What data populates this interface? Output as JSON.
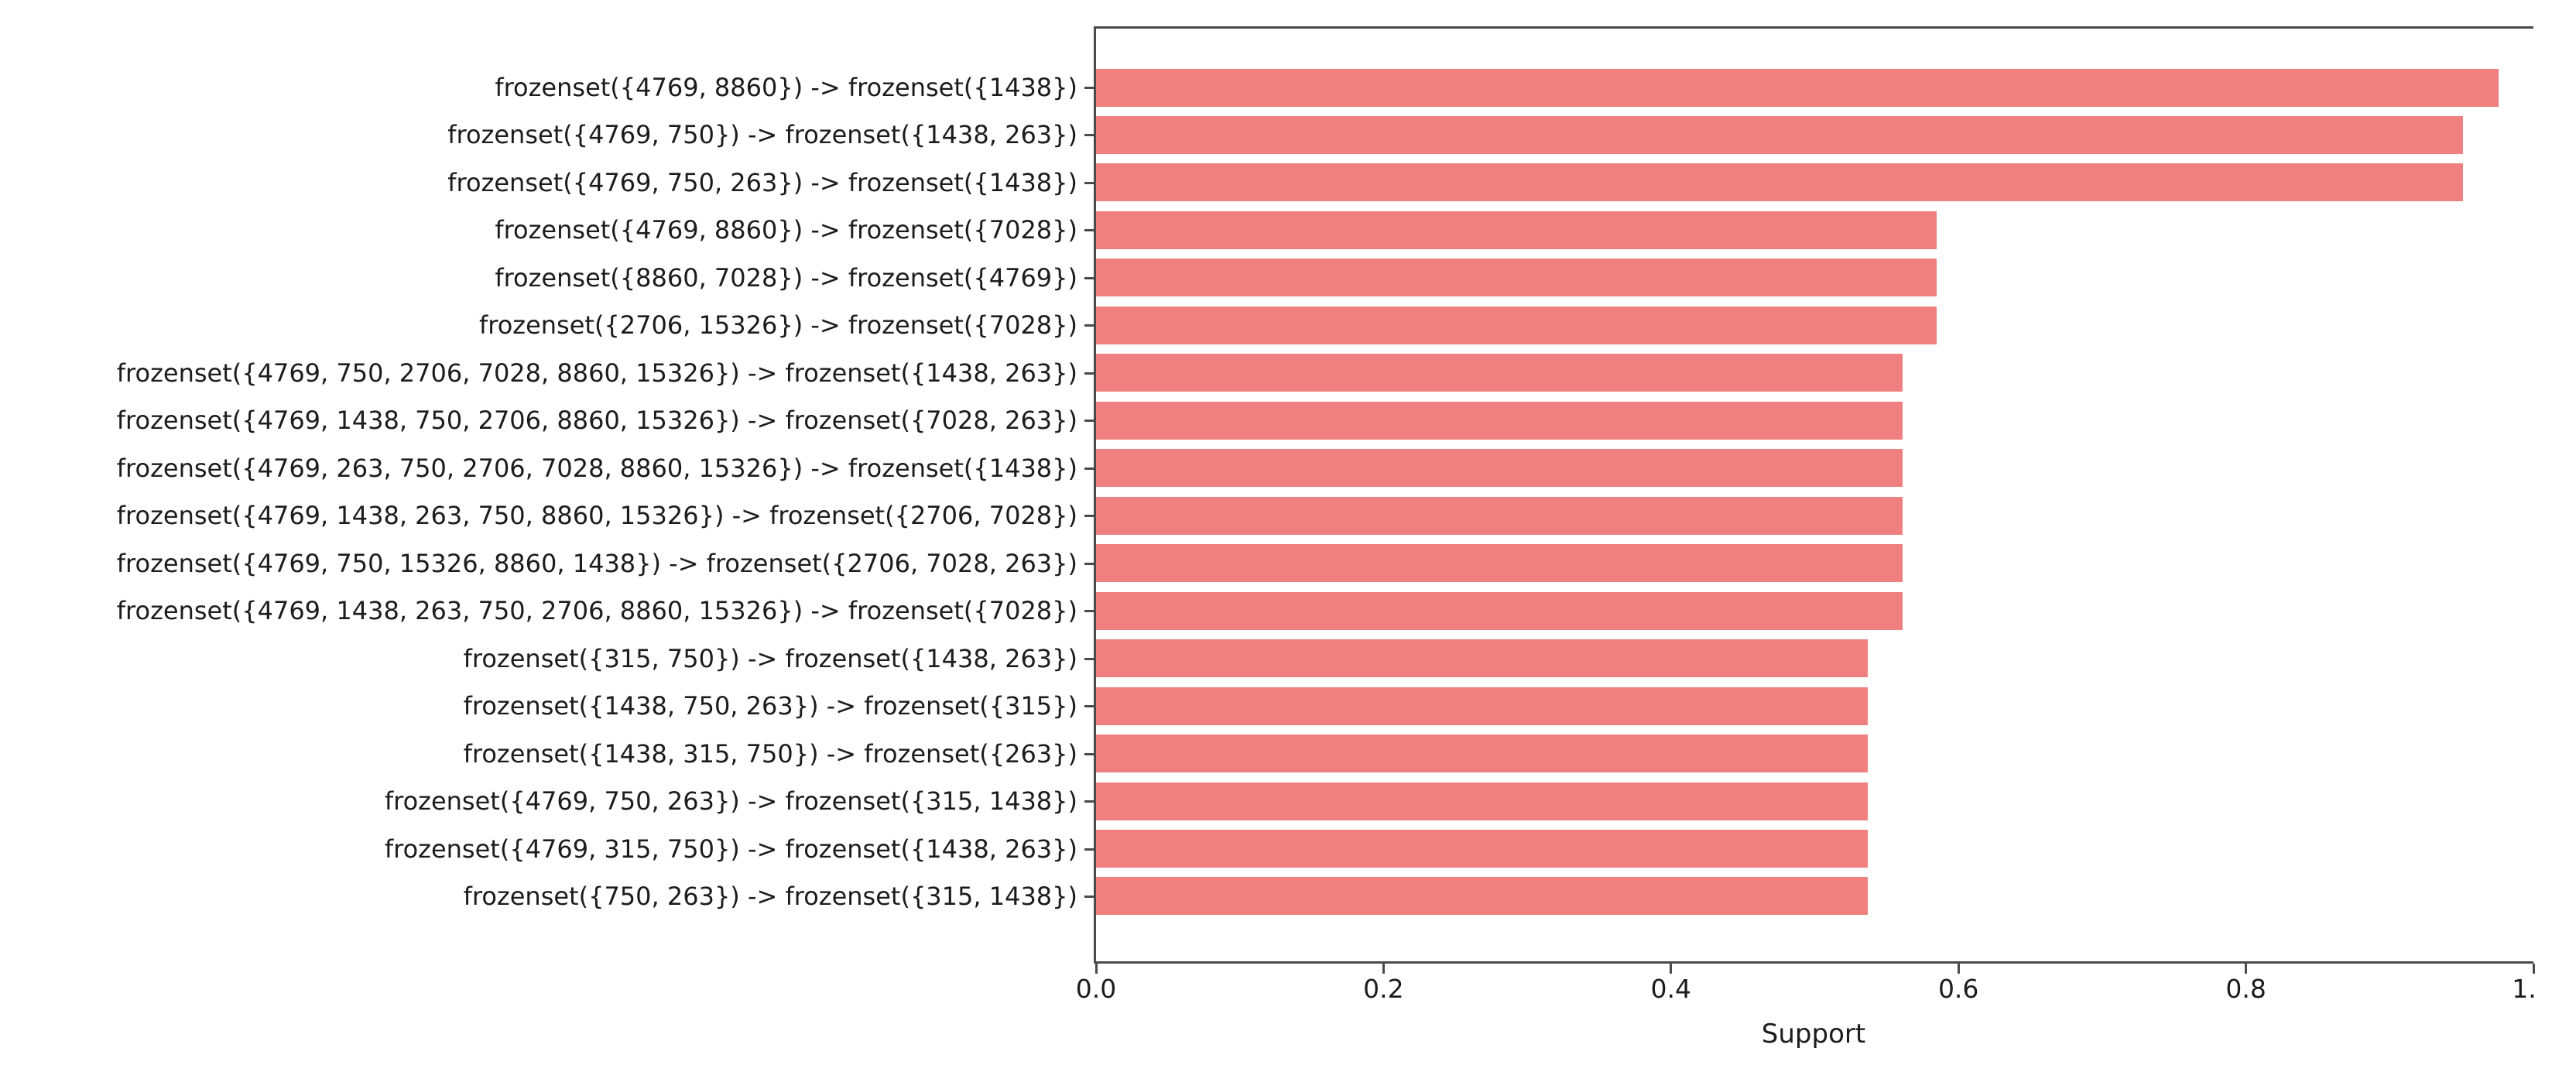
{
  "chart_data": {
    "type": "bar",
    "orientation": "horizontal",
    "title": "",
    "xlabel": "Support",
    "ylabel": "",
    "xlim": [
      0.0,
      1.0
    ],
    "x_ticks": [
      0.0,
      0.2,
      0.4,
      0.6,
      0.8,
      1.0
    ],
    "x_tick_labels": [
      "0.0",
      "0.2",
      "0.4",
      "0.6",
      "0.8",
      "1."
    ],
    "grid": false,
    "legend": null,
    "bar_color": "#f08080",
    "categories": [
      "frozenset({4769, 8860}) -> frozenset({1438})",
      "frozenset({4769, 750}) -> frozenset({1438, 263})",
      "frozenset({4769, 750, 263}) -> frozenset({1438})",
      "frozenset({4769, 8860}) -> frozenset({7028})",
      "frozenset({8860, 7028}) -> frozenset({4769})",
      "frozenset({2706, 15326}) -> frozenset({7028})",
      "frozenset({4769, 750, 2706, 7028, 8860, 15326}) -> frozenset({1438, 263})",
      "frozenset({4769, 1438, 750, 2706, 8860, 15326}) -> frozenset({7028, 263})",
      "frozenset({4769, 263, 750, 2706, 7028, 8860, 15326}) -> frozenset({1438})",
      "frozenset({4769, 1438, 263, 750, 8860, 15326}) -> frozenset({2706, 7028})",
      "frozenset({4769, 750, 15326, 8860, 1438}) -> frozenset({2706, 7028, 263})",
      "frozenset({4769, 1438, 263, 750, 2706, 8860, 15326}) -> frozenset({7028})",
      "frozenset({315, 750}) -> frozenset({1438, 263})",
      "frozenset({1438, 750, 263}) -> frozenset({315})",
      "frozenset({1438, 315, 750}) -> frozenset({263})",
      "frozenset({4769, 750, 263}) -> frozenset({315, 1438})",
      "frozenset({4769, 315, 750}) -> frozenset({1438, 263})",
      "frozenset({750, 263}) -> frozenset({315, 1438})"
    ],
    "values": [
      0.976,
      0.951,
      0.951,
      0.585,
      0.585,
      0.585,
      0.561,
      0.561,
      0.561,
      0.561,
      0.561,
      0.561,
      0.537,
      0.537,
      0.537,
      0.537,
      0.537,
      0.537
    ]
  }
}
